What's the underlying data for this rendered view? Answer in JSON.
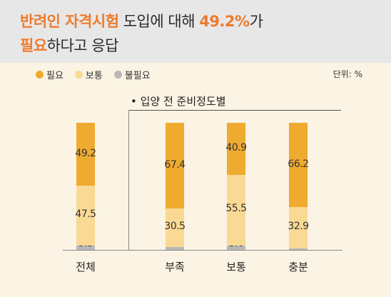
{
  "header": {
    "line1": {
      "part1": "반려인 자격시험",
      "part2": " 도입에 대해 ",
      "part3": "49.2%",
      "part4": "가"
    },
    "line2": {
      "part1": "필요",
      "part2": "하다고 응답"
    }
  },
  "legend": [
    {
      "label": "필요",
      "color": "#efaa30"
    },
    {
      "label": "보통",
      "color": "#fad995"
    },
    {
      "label": "불필요",
      "color": "#b8b8b8"
    }
  ],
  "unit": "단위: %",
  "subtitle": "• 입양 전 준비정도별",
  "chart_data": {
    "type": "bar",
    "stacked": true,
    "categories": [
      "전체",
      "부족",
      "보통",
      "충분"
    ],
    "series": [
      {
        "name": "필요",
        "color": "#efaa30",
        "values": [
          49.2,
          67.4,
          40.9,
          66.2
        ]
      },
      {
        "name": "보통",
        "color": "#fad995",
        "values": [
          47.5,
          30.5,
          55.5,
          32.9
        ]
      },
      {
        "name": "불필요",
        "color": "#b8b8b8",
        "values": [
          3.3,
          2.2,
          3.6,
          1.0
        ]
      }
    ],
    "labels": [
      [
        "49.2",
        "47.5",
        "3.3"
      ],
      [
        "67.4",
        "30.5",
        "2.2"
      ],
      [
        "40.9",
        "55.5",
        "3.6"
      ],
      [
        "66.2",
        "32.9",
        "1.0"
      ]
    ],
    "ylim": [
      0,
      100
    ],
    "grid": false
  }
}
